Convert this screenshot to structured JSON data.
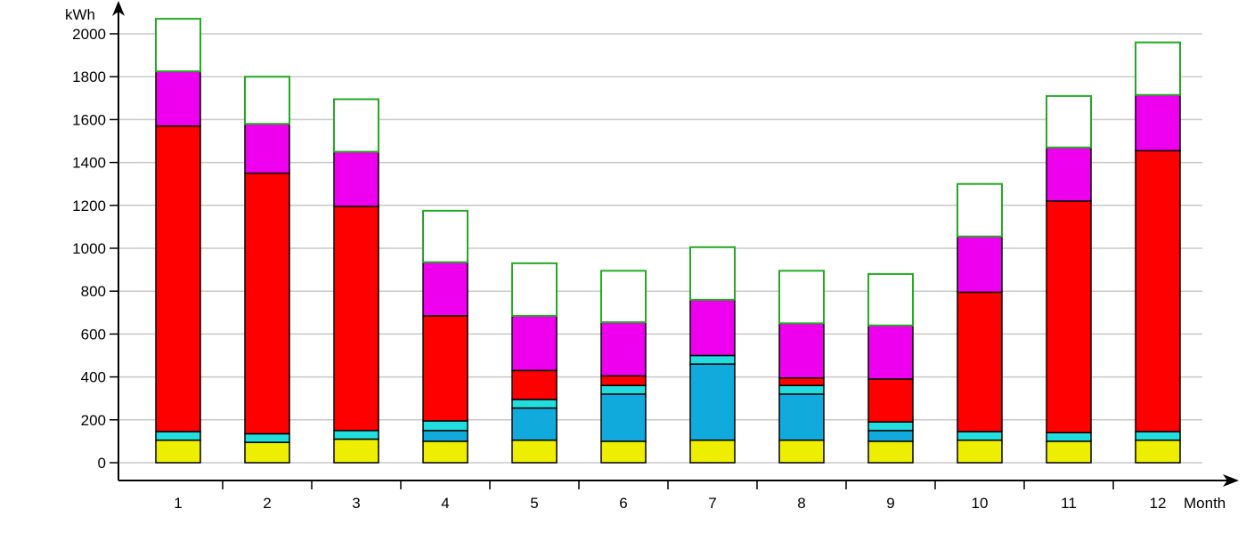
{
  "chart_data": {
    "type": "bar",
    "stacked": true,
    "xlabel": "Month",
    "ylabel": "kWh",
    "ylim": [
      0,
      2000
    ],
    "yticks": [
      0,
      200,
      400,
      600,
      800,
      1000,
      1200,
      1400,
      1600,
      1800,
      2000
    ],
    "grid": true,
    "categories": [
      "1",
      "2",
      "3",
      "4",
      "5",
      "6",
      "7",
      "8",
      "9",
      "10",
      "11",
      "12"
    ],
    "colors": {
      "yellow": "#eeee00",
      "cyan": "#22dddd",
      "blue": "#11aadd",
      "red": "#ff0000",
      "magenta": "#ee00ee",
      "outline": "#22aa22"
    },
    "series": [
      {
        "color_key": "yellow",
        "values": [
          105,
          95,
          110,
          100,
          105,
          100,
          105,
          105,
          100,
          105,
          100,
          105
        ]
      },
      {
        "color_key": "blue",
        "values": [
          0,
          0,
          0,
          50,
          150,
          220,
          355,
          215,
          50,
          0,
          0,
          0
        ]
      },
      {
        "color_key": "cyan",
        "values": [
          40,
          40,
          40,
          45,
          40,
          40,
          40,
          40,
          40,
          40,
          40,
          40
        ]
      },
      {
        "color_key": "red",
        "values": [
          1425,
          1215,
          1045,
          490,
          135,
          45,
          0,
          35,
          200,
          650,
          1080,
          1310
        ]
      },
      {
        "color_key": "magenta",
        "values": [
          255,
          230,
          255,
          250,
          255,
          250,
          260,
          255,
          250,
          260,
          250,
          260
        ]
      },
      {
        "color_key": "outline",
        "outline": true,
        "values": [
          245,
          220,
          245,
          240,
          245,
          240,
          245,
          245,
          240,
          245,
          240,
          245
        ]
      }
    ]
  }
}
